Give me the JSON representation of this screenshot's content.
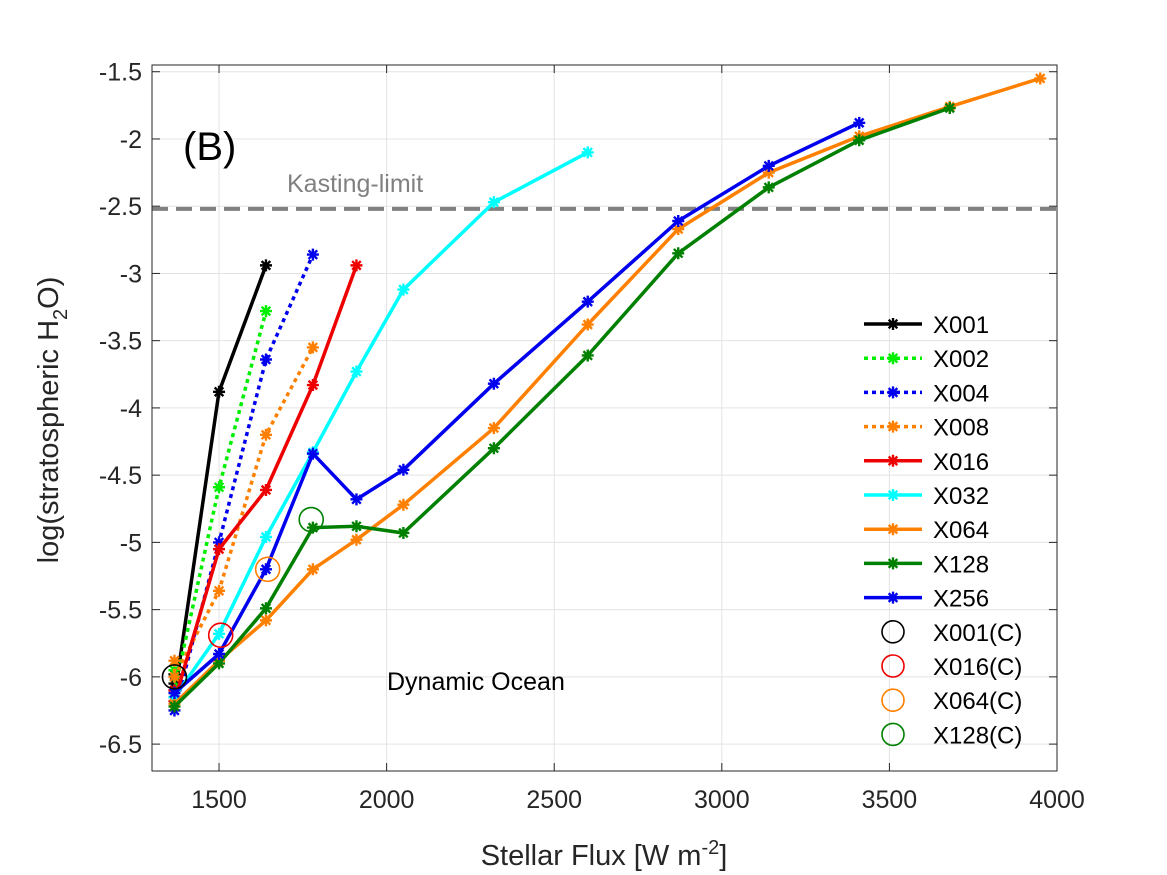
{
  "chart_data": {
    "type": "line",
    "panel_label": "(B)",
    "annotation": "Dynamic Ocean",
    "xlabel": {
      "base": "Stellar Flux [W m",
      "sup": "-2",
      "tail": "]"
    },
    "ylabel": {
      "base": "log(stratospheric H",
      "sub": "2",
      "tail": "O)"
    },
    "xlim": [
      1300,
      4000
    ],
    "ylim": [
      -6.7,
      -1.45
    ],
    "xticks": [
      1500,
      2000,
      2500,
      3000,
      3500,
      4000
    ],
    "yticks": [
      -1.5,
      -2,
      -2.5,
      -3,
      -3.5,
      -4,
      -4.5,
      -5,
      -5.5,
      -6,
      -6.5
    ],
    "grid": true,
    "legend_position": "right",
    "reference_line": {
      "label": "Kasting-limit",
      "y": -2.52,
      "color": "#808080"
    },
    "series": [
      {
        "name": "X001",
        "color": "#000000",
        "dashed": false,
        "points": [
          [
            1367,
            -5.98
          ],
          [
            1367,
            -6.05
          ],
          [
            1367,
            -6.15
          ],
          [
            1500,
            -3.88
          ],
          [
            1640,
            -2.94
          ]
        ]
      },
      {
        "name": "X002",
        "color": "#00ee00",
        "dashed": true,
        "points": [
          [
            1367,
            -5.95
          ],
          [
            1367,
            -6.1
          ],
          [
            1500,
            -4.59
          ],
          [
            1640,
            -3.28
          ]
        ]
      },
      {
        "name": "X004",
        "color": "#0000ee",
        "dashed": true,
        "points": [
          [
            1367,
            -6.1
          ],
          [
            1367,
            -6.25
          ],
          [
            1500,
            -5.0
          ],
          [
            1640,
            -3.64
          ],
          [
            1780,
            -2.86
          ]
        ]
      },
      {
        "name": "X008",
        "color": "#ff8000",
        "dashed": true,
        "points": [
          [
            1367,
            -5.88
          ],
          [
            1367,
            -6.0
          ],
          [
            1500,
            -5.36
          ],
          [
            1640,
            -4.2
          ],
          [
            1780,
            -3.55
          ]
        ]
      },
      {
        "name": "X016",
        "color": "#ee0000",
        "dashed": false,
        "points": [
          [
            1367,
            -6.1
          ],
          [
            1367,
            -6.18
          ],
          [
            1500,
            -5.05
          ],
          [
            1640,
            -4.61
          ],
          [
            1780,
            -3.83
          ],
          [
            1910,
            -2.94
          ]
        ]
      },
      {
        "name": "X032",
        "color": "#00ffff",
        "dashed": false,
        "points": [
          [
            1367,
            -6.15
          ],
          [
            1500,
            -5.68
          ],
          [
            1640,
            -4.96
          ],
          [
            1780,
            -4.33
          ],
          [
            1910,
            -3.73
          ],
          [
            2050,
            -3.12
          ],
          [
            2320,
            -2.47
          ],
          [
            2600,
            -2.1
          ]
        ]
      },
      {
        "name": "X064",
        "color": "#ff8000",
        "dashed": false,
        "points": [
          [
            1367,
            -6.2
          ],
          [
            1500,
            -5.88
          ],
          [
            1640,
            -5.58
          ],
          [
            1780,
            -5.2
          ],
          [
            1910,
            -4.98
          ],
          [
            2050,
            -4.72
          ],
          [
            2320,
            -4.15
          ],
          [
            2600,
            -3.38
          ],
          [
            2870,
            -2.67
          ],
          [
            3140,
            -2.25
          ],
          [
            3410,
            -1.98
          ],
          [
            3680,
            -1.76
          ],
          [
            3950,
            -1.55
          ]
        ]
      },
      {
        "name": "X128",
        "color": "#008000",
        "dashed": false,
        "points": [
          [
            1367,
            -6.22
          ],
          [
            1500,
            -5.9
          ],
          [
            1640,
            -5.49
          ],
          [
            1780,
            -4.89
          ],
          [
            1910,
            -4.88
          ],
          [
            2050,
            -4.93
          ],
          [
            2320,
            -4.3
          ],
          [
            2600,
            -3.61
          ],
          [
            2870,
            -2.85
          ],
          [
            3140,
            -2.36
          ],
          [
            3410,
            -2.01
          ],
          [
            3680,
            -1.77
          ]
        ]
      },
      {
        "name": "X256",
        "color": "#0000ee",
        "dashed": false,
        "points": [
          [
            1367,
            -6.12
          ],
          [
            1500,
            -5.83
          ],
          [
            1640,
            -5.2
          ],
          [
            1780,
            -4.34
          ],
          [
            1910,
            -4.68
          ],
          [
            2050,
            -4.46
          ],
          [
            2320,
            -3.82
          ],
          [
            2600,
            -3.21
          ],
          [
            2870,
            -2.61
          ],
          [
            3140,
            -2.2
          ],
          [
            3410,
            -1.88
          ]
        ]
      }
    ],
    "circle_series": [
      {
        "name": "X001(C)",
        "color": "#000000",
        "x": 1367,
        "y": -6.0
      },
      {
        "name": "X016(C)",
        "color": "#ee0000",
        "x": 1505,
        "y": -5.69
      },
      {
        "name": "X064(C)",
        "color": "#ff8000",
        "x": 1645,
        "y": -5.2
      },
      {
        "name": "X128(C)",
        "color": "#008000",
        "x": 1775,
        "y": -4.83
      }
    ]
  }
}
